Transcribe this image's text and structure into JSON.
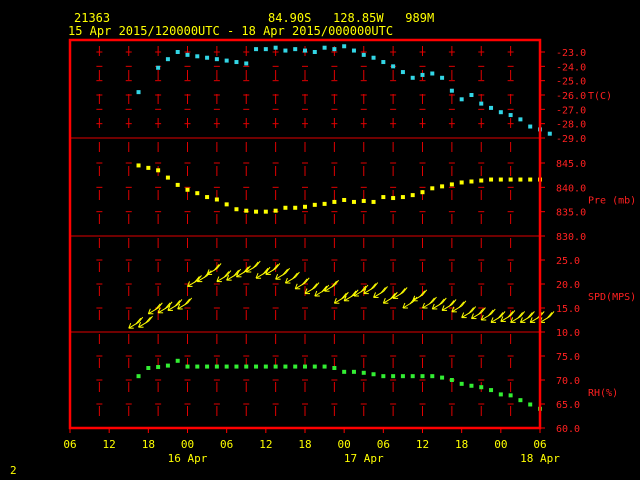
{
  "header": {
    "station_id": "21363",
    "location": "84.90S   128.85W   989M",
    "period": "15 Apr 2015/120000UTC - 18 Apr 2015/000000UTC"
  },
  "footer": {
    "page_number": "2"
  },
  "colors": {
    "frame": "#ff0000",
    "grid": "#e00000",
    "text": "#ffff00",
    "temperature": "#33d6e6",
    "pressure": "#ffff00",
    "wind": "#ffff00",
    "humidity": "#33ee33"
  },
  "chart_data": [
    {
      "type": "scatter",
      "name": "temperature",
      "ylabel": "T(C)",
      "ylim": [
        -29.0,
        -23.0
      ],
      "ytick_labels": [
        "-23.0",
        "-24.0",
        "-25.0",
        "-26.0",
        "-27.0",
        "-28.0",
        "-29.0"
      ],
      "x_hours": [
        13,
        15,
        16,
        17,
        18,
        19,
        20,
        21,
        22,
        23,
        24,
        25,
        26,
        27,
        28,
        29,
        30,
        31,
        32,
        33,
        34,
        35,
        36,
        37,
        38,
        39,
        40,
        41,
        42,
        43,
        44,
        45,
        46,
        47,
        48,
        49,
        50,
        51,
        52,
        53,
        54,
        55
      ],
      "y": [
        -25.8,
        -24.1,
        -23.5,
        -23.0,
        -23.2,
        -23.3,
        -23.4,
        -23.5,
        -23.6,
        -23.7,
        -23.8,
        -22.8,
        -22.8,
        -22.7,
        -22.9,
        -22.8,
        -22.9,
        -23.0,
        -22.7,
        -22.8,
        -22.6,
        -22.9,
        -23.2,
        -23.4,
        -23.7,
        -24.0,
        -24.4,
        -24.8,
        -24.6,
        -24.5,
        -24.8,
        -25.7,
        -26.3,
        -26.0,
        -26.6,
        -26.9,
        -27.2,
        -27.4,
        -27.7,
        -28.2,
        -28.4,
        -28.7
      ]
    },
    {
      "type": "scatter",
      "name": "pressure",
      "ylabel": "Pre (mb)",
      "ylim": [
        830.0,
        845.0
      ],
      "ytick_labels": [
        "845.0",
        "840.0",
        "835.0",
        "830.0"
      ],
      "x_hours": [
        13,
        14,
        15,
        16,
        17,
        18,
        19,
        20,
        21,
        22,
        23,
        24,
        25,
        26,
        27,
        28,
        29,
        30,
        31,
        32,
        33,
        34,
        35,
        36,
        37,
        38,
        39,
        40,
        41,
        42,
        43,
        44,
        45,
        46,
        47,
        48,
        49,
        50,
        51,
        52,
        53,
        54
      ],
      "y": [
        844.5,
        844.0,
        843.5,
        842.0,
        840.5,
        839.5,
        838.8,
        838.0,
        837.5,
        836.5,
        835.5,
        835.2,
        835.0,
        835.0,
        835.2,
        835.8,
        835.8,
        836.0,
        836.4,
        836.6,
        837.0,
        837.4,
        837.0,
        837.2,
        837.0,
        838.0,
        837.8,
        838.0,
        838.4,
        839.0,
        839.8,
        840.2,
        840.6,
        841.0,
        841.2,
        841.4,
        841.6,
        841.6,
        841.6,
        841.6,
        841.6,
        841.6
      ]
    },
    {
      "type": "scatter",
      "name": "wind_speed",
      "ylabel": "SPD(MPS)",
      "ylim": [
        10.0,
        25.0
      ],
      "ytick_labels": [
        "25.0",
        "20.0",
        "15.0",
        "10.0"
      ],
      "x_hours": [
        12,
        13,
        14,
        15,
        16,
        17,
        18,
        19,
        20,
        21,
        22,
        23,
        24,
        25,
        26,
        27,
        28,
        29,
        30,
        31,
        32,
        33,
        34,
        35,
        36,
        37,
        38,
        39,
        40,
        41,
        42,
        43,
        44,
        45,
        46,
        47,
        48,
        49,
        50,
        51,
        52,
        53,
        54
      ],
      "y": [
        10.8,
        11.0,
        13.8,
        14.0,
        14.5,
        14.8,
        19.5,
        20.5,
        22.0,
        20.5,
        20.8,
        21.5,
        22.5,
        21.2,
        22.0,
        21.0,
        20.2,
        19.0,
        18.0,
        17.5,
        18.5,
        16.0,
        16.5,
        17.5,
        18.0,
        17.2,
        16.0,
        17.0,
        15.0,
        16.5,
        15.0,
        14.8,
        14.5,
        14.2,
        13.0,
        12.8,
        12.5,
        12.0,
        12.2,
        12.0,
        12.0,
        12.0,
        12.0
      ]
    },
    {
      "type": "scatter",
      "name": "relative_humidity",
      "ylabel": "RH(%)",
      "ylim": [
        60.0,
        75.0
      ],
      "ytick_labels": [
        "75.0",
        "70.0",
        "65.0",
        "60.0"
      ],
      "x_hours": [
        13,
        14,
        15,
        16,
        17,
        18,
        19,
        20,
        21,
        22,
        23,
        24,
        25,
        26,
        27,
        28,
        29,
        30,
        31,
        32,
        33,
        34,
        35,
        36,
        37,
        38,
        39,
        40,
        41,
        42,
        43,
        44,
        45,
        46,
        47,
        48,
        49,
        50,
        51,
        52,
        53,
        54
      ],
      "y": [
        70.8,
        72.5,
        72.7,
        73.0,
        74.0,
        72.8,
        72.8,
        72.8,
        72.8,
        72.8,
        72.8,
        72.8,
        72.8,
        72.8,
        72.8,
        72.8,
        72.8,
        72.8,
        72.8,
        72.8,
        72.5,
        71.7,
        71.7,
        71.5,
        71.2,
        70.8,
        70.8,
        70.8,
        70.8,
        70.8,
        70.8,
        70.5,
        70.0,
        69.2,
        68.8,
        68.5,
        67.9,
        67.0,
        66.8,
        65.8,
        64.9,
        64.0
      ]
    }
  ],
  "xaxis": {
    "xlim_hours": [
      6,
      54
    ],
    "tick_labels": [
      "06",
      "12",
      "18",
      "00",
      "06",
      "12",
      "18",
      "00",
      "06",
      "12",
      "18",
      "00",
      "06"
    ],
    "date_labels": [
      "16 Apr",
      "17 Apr",
      "18 Apr"
    ]
  }
}
